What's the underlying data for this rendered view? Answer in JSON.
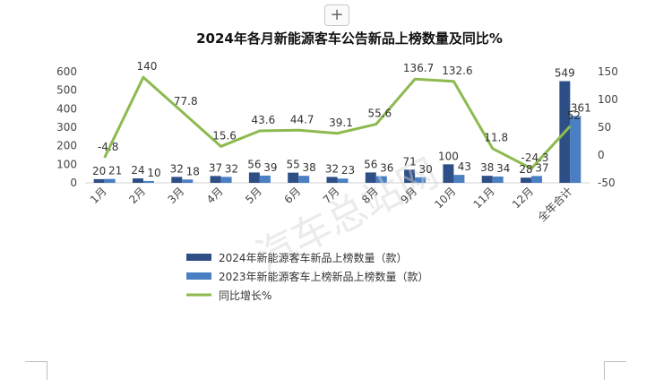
{
  "toolbar": {
    "add_label": "+"
  },
  "watermark": "汽车总站网",
  "colors": {
    "series_2024": "#2e4f86",
    "series_2023": "#4a7fc4",
    "growth_line": "#8dba4f"
  },
  "chart_data": {
    "type": "bar",
    "title": "2024年各月新能源客车公告新品上榜数量及同比%",
    "categories": [
      "1月",
      "2月",
      "3月",
      "4月",
      "5月",
      "6月",
      "7月",
      "8月",
      "9月",
      "10月",
      "11月",
      "12月",
      "全年合计"
    ],
    "series": [
      {
        "name": "2024年新能源客车新品上榜数量（款）",
        "type": "bar",
        "axis": "left",
        "values": [
          20,
          24,
          32,
          37,
          56,
          55,
          32,
          56,
          71,
          100,
          38,
          28,
          549
        ],
        "labels": [
          "20",
          "24",
          "32",
          "37",
          "56",
          "55",
          "32",
          "56",
          "71",
          "100",
          "38",
          "28",
          "549"
        ]
      },
      {
        "name": "2023年新能源客车上榜新品上榜数量（款）",
        "type": "bar",
        "axis": "left",
        "values": [
          21,
          10,
          18,
          32,
          39,
          38,
          23,
          36,
          30,
          43,
          34,
          37,
          361
        ],
        "labels": [
          "21",
          "10",
          "18",
          "32",
          "39",
          "38",
          "23",
          "36",
          "30",
          "43",
          "34",
          "37",
          "361"
        ]
      },
      {
        "name": "同比增长%",
        "type": "line",
        "axis": "right",
        "values": [
          -4.8,
          140,
          77.8,
          15.6,
          43.6,
          44.7,
          39.1,
          55.6,
          136.7,
          132.6,
          11.8,
          -24.3,
          52
        ],
        "labels": [
          "-4.8",
          "140",
          "77.8",
          "15.6",
          "43.6",
          "44.7",
          "39.1",
          "55.6",
          "136.7",
          "132.6",
          "11.8",
          "-24.3",
          "52"
        ]
      }
    ],
    "y_left": {
      "ylim": [
        0,
        600
      ],
      "ticks": [
        "0",
        "100",
        "200",
        "300",
        "400",
        "500",
        "600"
      ]
    },
    "y_right": {
      "ylim": [
        -50,
        150
      ],
      "ticks": [
        "-50",
        "0",
        "50",
        "100",
        "150"
      ]
    },
    "legend_position": "bottom",
    "grid": false
  }
}
